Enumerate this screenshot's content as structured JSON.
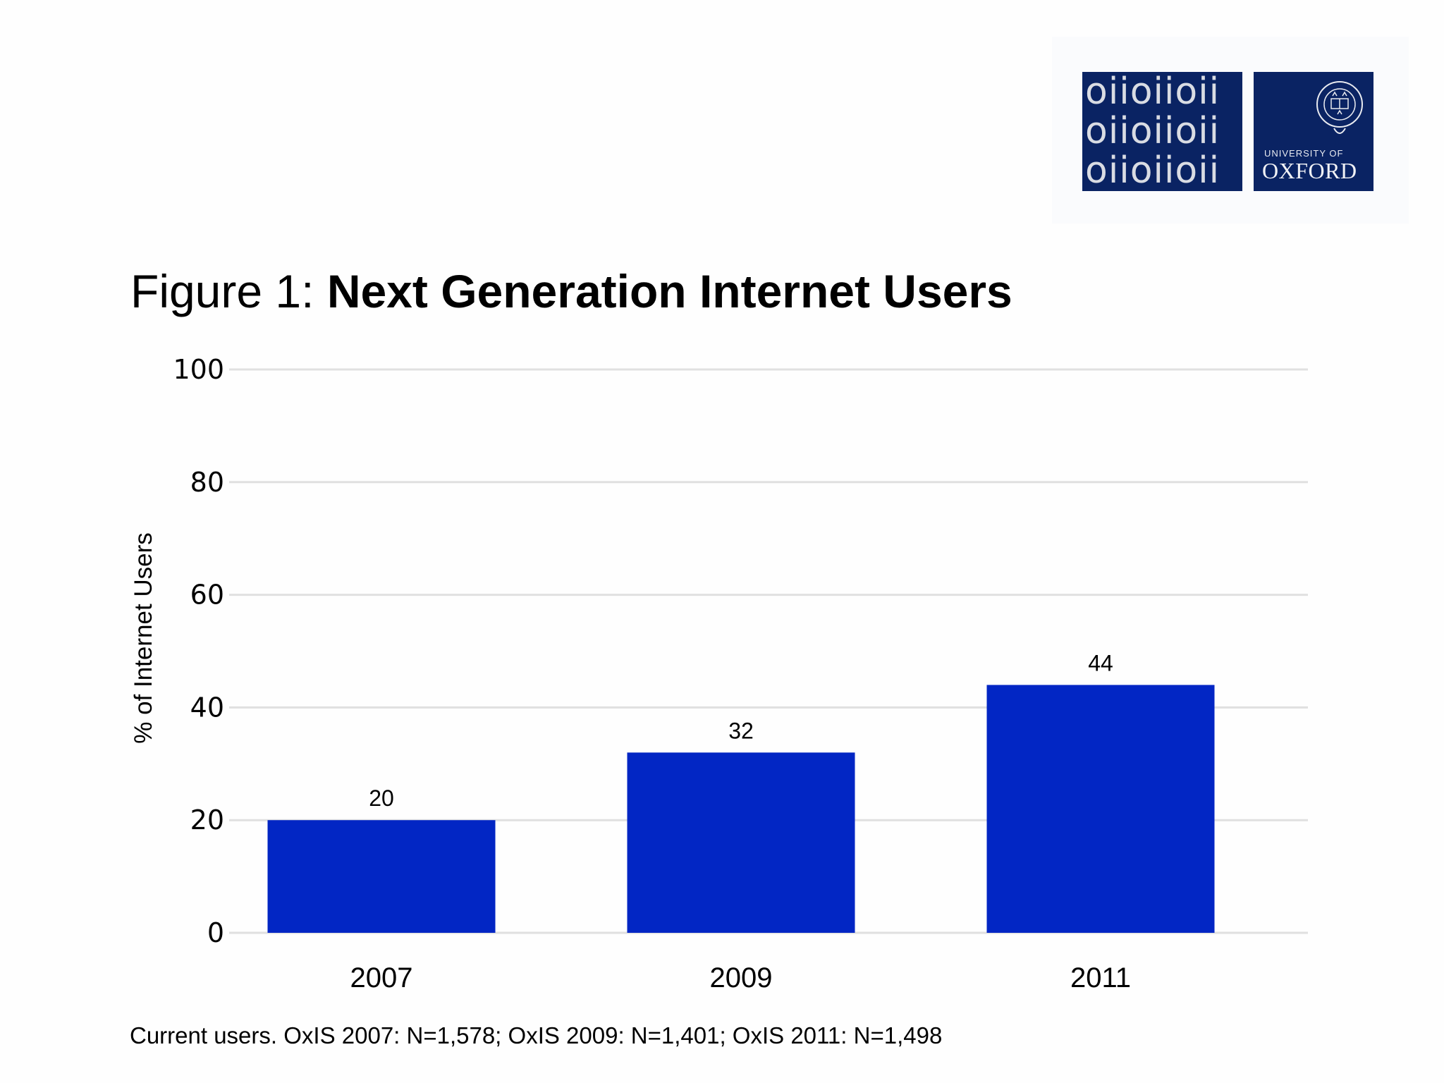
{
  "logo": {
    "binary_rows": [
      "oiioiioii",
      "oiioiioii",
      "oiioiioii"
    ],
    "university_line": "UNIVERSITY OF",
    "oxford_line": "OXFORD",
    "brand_color": "#0a2363"
  },
  "figure": {
    "prefix": "Figure 1:",
    "title": "Next Generation Internet Users"
  },
  "footnote": "Current users. OxIS 2007: N=1,578; OxIS 2009: N=1,401; OxIS 2011: N=1,498",
  "chart_data": {
    "type": "bar",
    "title": "Next Generation Internet Users",
    "categories": [
      "2007",
      "2009",
      "2011"
    ],
    "values": [
      20,
      32,
      44
    ],
    "data_labels": [
      "20",
      "32",
      "44"
    ],
    "xlabel": "",
    "ylabel": "% of Internet Users",
    "ylim": [
      0,
      100
    ],
    "yticks": [
      0,
      20,
      40,
      60,
      80,
      100
    ],
    "ytick_labels": [
      "0",
      "20",
      "40",
      "60",
      "80",
      "100"
    ],
    "grid": true,
    "legend": "none",
    "bar_color": "#0226c4",
    "grid_color": "#e0e0e0"
  }
}
